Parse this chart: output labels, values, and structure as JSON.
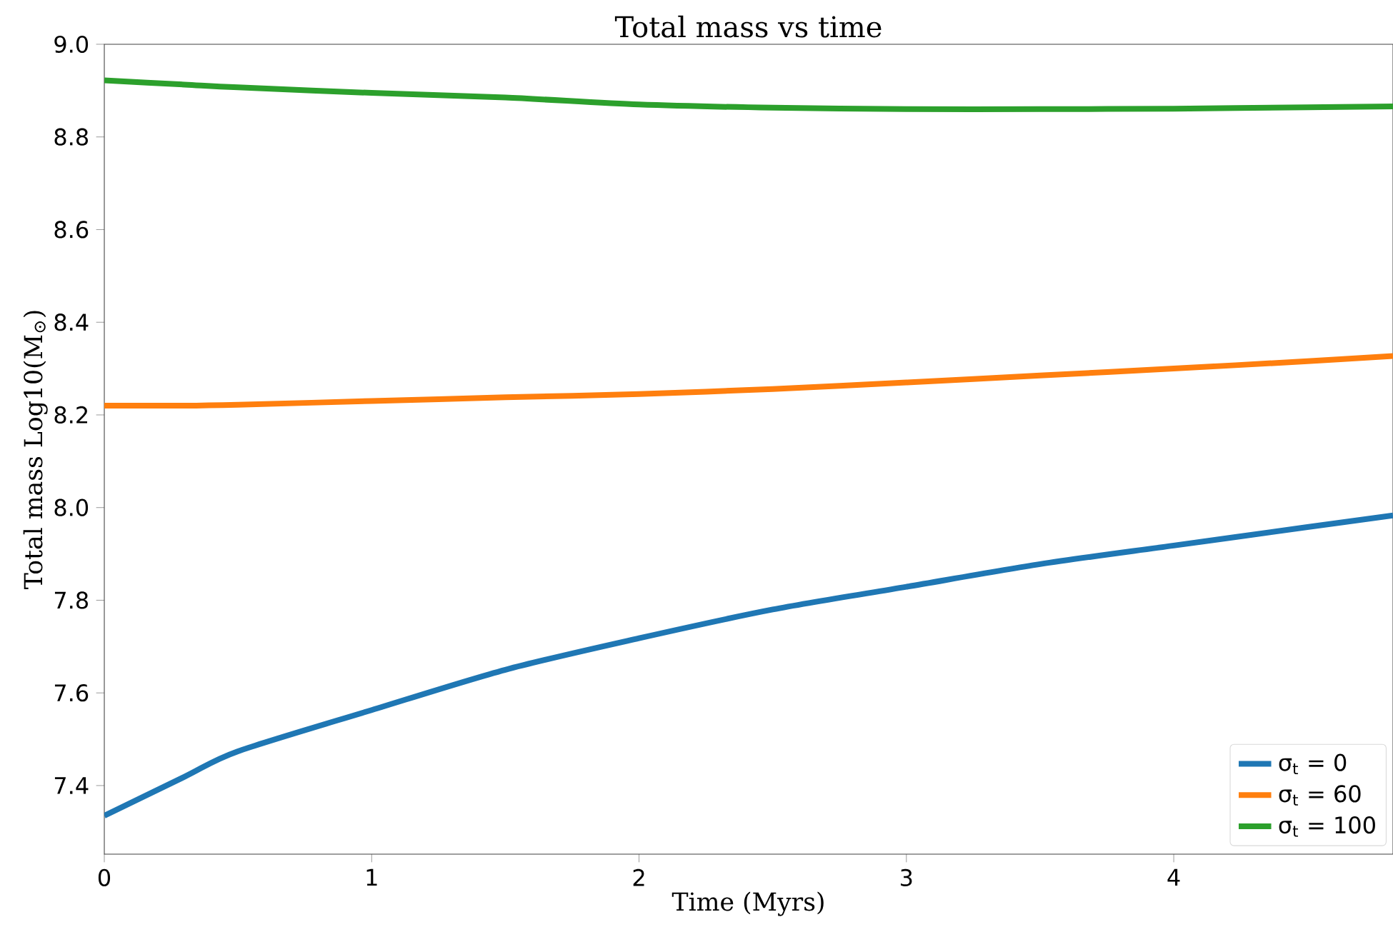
{
  "chart_data": {
    "type": "line",
    "title": "Total mass vs time",
    "xlabel": "Time (Myrs)",
    "ylabel": "Total mass Log10(M$_{⊙}$)",
    "x": [
      0,
      0.3,
      0.5,
      1,
      1.5,
      2,
      2.5,
      3,
      3.5,
      4,
      4.5,
      4.82
    ],
    "series": [
      {
        "name": "σ$_{t}$ = 0",
        "color": "#1f77b4",
        "values": [
          7.335,
          7.419,
          7.474,
          7.563,
          7.65,
          7.718,
          7.78,
          7.829,
          7.878,
          7.918,
          7.958,
          7.983
        ]
      },
      {
        "name": "σ$_{t}$ = 60",
        "color": "#ff7f0e",
        "values": [
          8.22,
          8.22,
          8.222,
          8.23,
          8.238,
          8.245,
          8.256,
          8.27,
          8.285,
          8.3,
          8.316,
          8.327
        ]
      },
      {
        "name": "σ$_{t}$ = 100",
        "color": "#2ca02c",
        "values": [
          8.922,
          8.913,
          8.907,
          8.895,
          8.885,
          8.87,
          8.863,
          8.86,
          8.86,
          8.861,
          8.864,
          8.866
        ]
      }
    ],
    "xlim": [
      0,
      4.82
    ],
    "ylim": [
      7.252,
      9.0
    ],
    "xticks": [
      0,
      1,
      2,
      3,
      4
    ],
    "yticks": [
      7.4,
      7.6,
      7.8,
      {
        "value": 8,
        "label": "8.0"
      },
      8.2,
      8.4,
      8.6,
      8.8,
      {
        "value": 9,
        "label": "9.0"
      }
    ],
    "legend": "bottom right",
    "grid": false,
    "marker": "none",
    "line_style": "solid"
  }
}
